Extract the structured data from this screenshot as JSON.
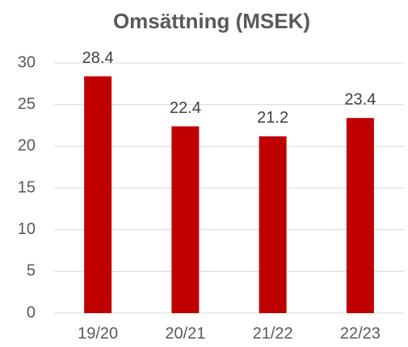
{
  "chart_data": {
    "type": "bar",
    "title": "Omsättning (MSEK)",
    "categories": [
      "19/20",
      "20/21",
      "21/22",
      "22/23"
    ],
    "values": [
      28.4,
      22.4,
      21.2,
      23.4
    ],
    "color": "#c00000",
    "ylim": [
      0,
      30
    ],
    "yticks": [
      0,
      5,
      10,
      15,
      20,
      25,
      30
    ],
    "grid": true
  }
}
